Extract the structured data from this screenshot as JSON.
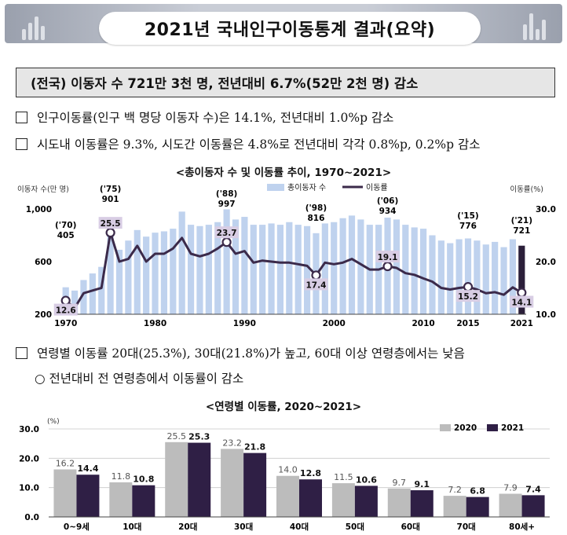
{
  "title": "2021년 국내인구이동통계 결과(요약)",
  "headline": "(전국) 이동자 수 721만 3천 명, 전년대비 6.7%(52만 2천 명) 감소",
  "bullets": [
    "인구이동률(인구 백 명당 이동자 수)은 14.1%, 전년대비 1.0%p 감소",
    "시도내 이동률은 9.3%, 시도간 이동률은 4.8%로 전년대비 각각 0.8%p, 0.2%p 감소",
    "연령별 이동률 20대(25.3%), 30대(21.8%)가 높고, 60대 이상 연령층에서는 낮음"
  ],
  "subbullet": "○  전년대비 전 연령층에서 이동률이 감소",
  "chart_data": [
    {
      "type": "bar+line",
      "title": "<총이동자 수 및 이동률 추이, 1970~2021>",
      "y_left_label": "이동자 수(만 명)",
      "y_right_label": "이동률(%)",
      "ylim_left": [
        200,
        1000
      ],
      "ylim_right": [
        10,
        30
      ],
      "yticks_left": [
        "1,000",
        "600",
        "200"
      ],
      "yticks_right": [
        "30.0",
        "20.0",
        "10.0"
      ],
      "xticks": [
        "1970",
        "1980",
        "1990",
        "2000",
        "2010",
        "2015",
        "2021"
      ],
      "legend": [
        "총이동자 수",
        "이동률"
      ],
      "years": [
        1970,
        1971,
        1972,
        1973,
        1974,
        1975,
        1976,
        1977,
        1978,
        1979,
        1980,
        1981,
        1982,
        1983,
        1984,
        1985,
        1986,
        1987,
        1988,
        1989,
        1990,
        1991,
        1992,
        1993,
        1994,
        1995,
        1996,
        1997,
        1998,
        1999,
        2000,
        2001,
        2002,
        2003,
        2004,
        2005,
        2006,
        2007,
        2008,
        2009,
        2010,
        2011,
        2012,
        2013,
        2014,
        2015,
        2016,
        2017,
        2018,
        2019,
        2020,
        2021
      ],
      "movers": [
        405,
        380,
        460,
        510,
        560,
        901,
        690,
        760,
        840,
        790,
        820,
        830,
        850,
        980,
        880,
        870,
        880,
        900,
        997,
        920,
        940,
        880,
        880,
        890,
        880,
        900,
        880,
        870,
        816,
        890,
        900,
        930,
        950,
        920,
        880,
        880,
        934,
        920,
        880,
        860,
        850,
        800,
        760,
        740,
        770,
        776,
        760,
        730,
        750,
        710,
        770,
        721
      ],
      "rate": [
        12.6,
        11.2,
        14.0,
        14.5,
        15.0,
        25.5,
        20.0,
        20.5,
        23.0,
        20.0,
        21.5,
        21.5,
        22.5,
        24.5,
        21.5,
        21.0,
        21.5,
        22.5,
        23.7,
        21.5,
        22.0,
        19.8,
        20.2,
        20.0,
        19.8,
        19.8,
        19.5,
        19.2,
        17.4,
        19.8,
        19.5,
        19.8,
        20.5,
        19.5,
        18.5,
        18.5,
        19.1,
        18.8,
        17.8,
        17.5,
        16.8,
        16.2,
        15.0,
        14.7,
        15.0,
        15.2,
        14.7,
        14.0,
        14.2,
        13.7,
        15.1,
        14.1
      ],
      "annotations": [
        {
          "year": 1970,
          "label_year": "('70)",
          "movers": "405",
          "rate": "12.6"
        },
        {
          "year": 1975,
          "label_year": "('75)",
          "movers": "901",
          "rate": "25.5"
        },
        {
          "year": 1988,
          "label_year": "('88)",
          "movers": "997",
          "rate": "23.7"
        },
        {
          "year": 1998,
          "label_year": "('98)",
          "movers": "816",
          "rate": "17.4"
        },
        {
          "year": 2006,
          "label_year": "('06)",
          "movers": "934",
          "rate": "19.1"
        },
        {
          "year": 2015,
          "label_year": "('15)",
          "movers": "776",
          "rate": "15.2"
        },
        {
          "year": 2021,
          "label_year": "('21)",
          "movers": "721",
          "rate": "14.1"
        }
      ],
      "colors": {
        "bar": "#bfd2ee",
        "bar_highlight": "#2b1f3a",
        "line": "#3b2a4a",
        "label_bg": "#d8cde4"
      }
    },
    {
      "type": "bar",
      "title": "<연령별 이동률, 2020~2021>",
      "unit": "(%)",
      "ylim": [
        0,
        30
      ],
      "yticks": [
        "30.0",
        "20.0",
        "10.0",
        "0.0"
      ],
      "categories": [
        "0~9세",
        "10대",
        "20대",
        "30대",
        "40대",
        "50대",
        "60대",
        "70대",
        "80세+"
      ],
      "series": [
        {
          "name": "2020",
          "values": [
            16.2,
            11.8,
            25.5,
            23.2,
            14.0,
            11.5,
            9.7,
            7.2,
            7.9
          ],
          "color": "#bcbcbc"
        },
        {
          "name": "2021",
          "values": [
            14.4,
            10.8,
            25.3,
            21.8,
            12.8,
            10.6,
            9.1,
            6.8,
            7.4
          ],
          "color": "#2f1f45"
        }
      ]
    }
  ]
}
